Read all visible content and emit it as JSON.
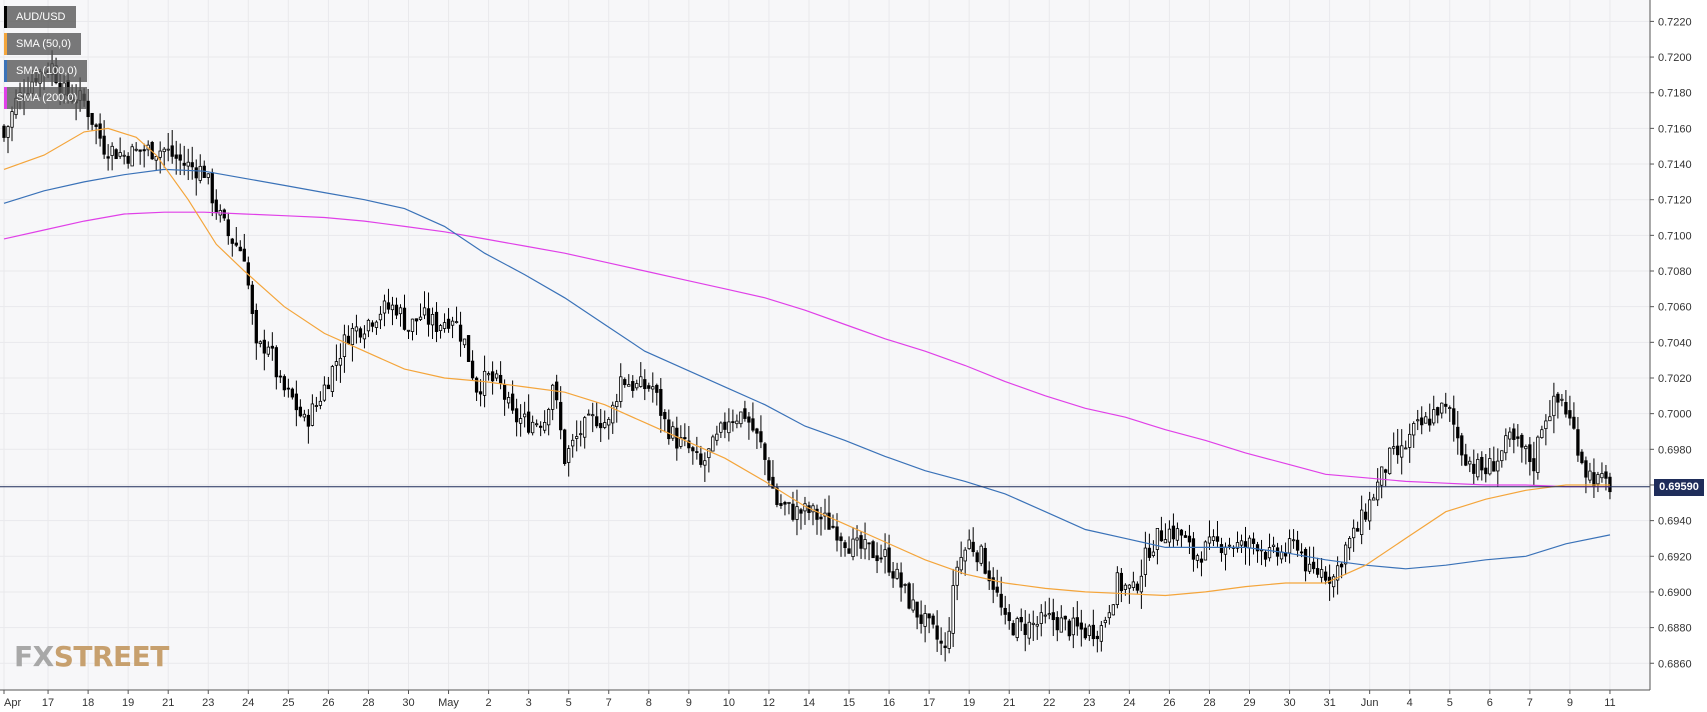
{
  "chart_data": {
    "type": "candlestick",
    "symbol": "AUD/USD",
    "ylim": [
      0.6845,
      0.7232
    ],
    "y_ticks": [
      "0.7220",
      "0.7200",
      "0.7180",
      "0.7160",
      "0.7140",
      "0.7120",
      "0.7100",
      "0.7080",
      "0.7060",
      "0.7040",
      "0.7020",
      "0.7000",
      "0.6980",
      "0.6960",
      "0.6940",
      "0.6920",
      "0.6900",
      "0.6880",
      "0.6860"
    ],
    "x_ticks": [
      {
        "label": "Apr",
        "x": 0
      },
      {
        "label": "17",
        "x": 11
      },
      {
        "label": "18",
        "x": 21
      },
      {
        "label": "19",
        "x": 31
      },
      {
        "label": "21",
        "x": 41
      },
      {
        "label": "23",
        "x": 51
      },
      {
        "label": "24",
        "x": 61
      },
      {
        "label": "25",
        "x": 71
      },
      {
        "label": "26",
        "x": 81
      },
      {
        "label": "28",
        "x": 91
      },
      {
        "label": "30",
        "x": 101
      },
      {
        "label": "May",
        "x": 111
      },
      {
        "label": "2",
        "x": 121
      },
      {
        "label": "3",
        "x": 131
      },
      {
        "label": "5",
        "x": 141
      },
      {
        "label": "7",
        "x": 151
      },
      {
        "label": "8",
        "x": 161
      },
      {
        "label": "9",
        "x": 171
      },
      {
        "label": "10",
        "x": 181
      },
      {
        "label": "12",
        "x": 191
      },
      {
        "label": "14",
        "x": 201
      },
      {
        "label": "15",
        "x": 211
      },
      {
        "label": "16",
        "x": 221
      },
      {
        "label": "17",
        "x": 231
      },
      {
        "label": "19",
        "x": 241
      },
      {
        "label": "21",
        "x": 251
      },
      {
        "label": "22",
        "x": 261
      },
      {
        "label": "23",
        "x": 271
      },
      {
        "label": "24",
        "x": 281
      },
      {
        "label": "26",
        "x": 291
      },
      {
        "label": "28",
        "x": 301
      },
      {
        "label": "29",
        "x": 311
      },
      {
        "label": "30",
        "x": 321
      },
      {
        "label": "31",
        "x": 331
      },
      {
        "label": "Jun",
        "x": 341
      },
      {
        "label": "4",
        "x": 351
      },
      {
        "label": "5",
        "x": 361
      },
      {
        "label": "6",
        "x": 371
      },
      {
        "label": "7",
        "x": 381
      },
      {
        "label": "9",
        "x": 391
      },
      {
        "label": "11",
        "x": 401
      }
    ],
    "xlim": [
      -1,
      411
    ],
    "price_anchors": [
      [
        0,
        0.7155
      ],
      [
        3,
        0.7175
      ],
      [
        8,
        0.719
      ],
      [
        12,
        0.7195
      ],
      [
        15,
        0.718
      ],
      [
        20,
        0.7175
      ],
      [
        25,
        0.715
      ],
      [
        30,
        0.7145
      ],
      [
        35,
        0.7148
      ],
      [
        40,
        0.7148
      ],
      [
        45,
        0.714
      ],
      [
        50,
        0.7136
      ],
      [
        53,
        0.7115
      ],
      [
        56,
        0.71
      ],
      [
        60,
        0.709
      ],
      [
        63,
        0.7035
      ],
      [
        66,
        0.704
      ],
      [
        69,
        0.7015
      ],
      [
        72,
        0.7008
      ],
      [
        75,
        0.6995
      ],
      [
        78,
        0.7005
      ],
      [
        82,
        0.7025
      ],
      [
        86,
        0.7045
      ],
      [
        90,
        0.705
      ],
      [
        94,
        0.7058
      ],
      [
        98,
        0.706
      ],
      [
        101,
        0.7048
      ],
      [
        104,
        0.7055
      ],
      [
        108,
        0.705
      ],
      [
        112,
        0.7055
      ],
      [
        115,
        0.704
      ],
      [
        118,
        0.7015
      ],
      [
        121,
        0.702
      ],
      [
        124,
        0.7015
      ],
      [
        127,
        0.6998
      ],
      [
        131,
        0.6995
      ],
      [
        135,
        0.6997
      ],
      [
        137,
        0.7018
      ],
      [
        140,
        0.6975
      ],
      [
        144,
        0.699
      ],
      [
        148,
        0.6998
      ],
      [
        151,
        0.6994
      ],
      [
        154,
        0.702
      ],
      [
        158,
        0.7015
      ],
      [
        162,
        0.7015
      ],
      [
        165,
        0.6995
      ],
      [
        168,
        0.6985
      ],
      [
        171,
        0.698
      ],
      [
        174,
        0.697
      ],
      [
        178,
        0.6985
      ],
      [
        181,
        0.6998
      ],
      [
        185,
        0.7
      ],
      [
        189,
        0.6982
      ],
      [
        193,
        0.695
      ],
      [
        197,
        0.6945
      ],
      [
        201,
        0.6945
      ],
      [
        205,
        0.694
      ],
      [
        208,
        0.6935
      ],
      [
        212,
        0.6925
      ],
      [
        216,
        0.6923
      ],
      [
        220,
        0.692
      ],
      [
        223,
        0.6908
      ],
      [
        226,
        0.6895
      ],
      [
        229,
        0.6885
      ],
      [
        232,
        0.6877
      ],
      [
        235,
        0.6866
      ],
      [
        238,
        0.6915
      ],
      [
        241,
        0.6928
      ],
      [
        244,
        0.692
      ],
      [
        247,
        0.6905
      ],
      [
        250,
        0.6882
      ],
      [
        254,
        0.688
      ],
      [
        258,
        0.6882
      ],
      [
        262,
        0.6885
      ],
      [
        266,
        0.688
      ],
      [
        270,
        0.6878
      ],
      [
        274,
        0.688
      ],
      [
        278,
        0.6905
      ],
      [
        282,
        0.69
      ],
      [
        286,
        0.6925
      ],
      [
        290,
        0.6935
      ],
      [
        294,
        0.6932
      ],
      [
        297,
        0.692
      ],
      [
        301,
        0.6925
      ],
      [
        305,
        0.6928
      ],
      [
        309,
        0.6925
      ],
      [
        313,
        0.6928
      ],
      [
        316,
        0.692
      ],
      [
        320,
        0.6922
      ],
      [
        323,
        0.6928
      ],
      [
        326,
        0.691
      ],
      [
        329,
        0.6912
      ],
      [
        332,
        0.6908
      ],
      [
        335,
        0.6925
      ],
      [
        338,
        0.6935
      ],
      [
        341,
        0.695
      ],
      [
        343,
        0.696
      ],
      [
        346,
        0.6975
      ],
      [
        349,
        0.6978
      ],
      [
        352,
        0.699
      ],
      [
        355,
        0.6995
      ],
      [
        358,
        0.7003
      ],
      [
        361,
        0.7
      ],
      [
        364,
        0.698
      ],
      [
        367,
        0.697
      ],
      [
        370,
        0.6968
      ],
      [
        373,
        0.6975
      ],
      [
        376,
        0.6985
      ],
      [
        379,
        0.698
      ],
      [
        382,
        0.6972
      ],
      [
        384,
        0.6995
      ],
      [
        386,
        0.7003
      ],
      [
        389,
        0.7008
      ],
      [
        392,
        0.699
      ],
      [
        395,
        0.6968
      ],
      [
        398,
        0.6962
      ],
      [
        401,
        0.696
      ]
    ],
    "sma_50": [
      [
        0,
        0.7137
      ],
      [
        10,
        0.7145
      ],
      [
        20,
        0.7158
      ],
      [
        26,
        0.716
      ],
      [
        33,
        0.7155
      ],
      [
        38,
        0.7145
      ],
      [
        46,
        0.712
      ],
      [
        53,
        0.7095
      ],
      [
        60,
        0.708
      ],
      [
        70,
        0.706
      ],
      [
        80,
        0.7045
      ],
      [
        90,
        0.7035
      ],
      [
        100,
        0.7025
      ],
      [
        110,
        0.702
      ],
      [
        120,
        0.7018
      ],
      [
        130,
        0.7015
      ],
      [
        140,
        0.7012
      ],
      [
        150,
        0.7005
      ],
      [
        160,
        0.6995
      ],
      [
        170,
        0.6985
      ],
      [
        180,
        0.6975
      ],
      [
        190,
        0.6962
      ],
      [
        200,
        0.6948
      ],
      [
        210,
        0.6938
      ],
      [
        220,
        0.6928
      ],
      [
        230,
        0.6918
      ],
      [
        240,
        0.691
      ],
      [
        250,
        0.6905
      ],
      [
        260,
        0.6902
      ],
      [
        270,
        0.69
      ],
      [
        280,
        0.6899
      ],
      [
        290,
        0.6898
      ],
      [
        300,
        0.69
      ],
      [
        310,
        0.6903
      ],
      [
        320,
        0.6905
      ],
      [
        330,
        0.6905
      ],
      [
        340,
        0.6915
      ],
      [
        350,
        0.693
      ],
      [
        360,
        0.6945
      ],
      [
        370,
        0.6952
      ],
      [
        380,
        0.6957
      ],
      [
        390,
        0.696
      ],
      [
        401,
        0.696
      ]
    ],
    "sma_100": [
      [
        0,
        0.7118
      ],
      [
        10,
        0.7125
      ],
      [
        20,
        0.713
      ],
      [
        30,
        0.7134
      ],
      [
        40,
        0.7137
      ],
      [
        50,
        0.7136
      ],
      [
        60,
        0.7132
      ],
      [
        70,
        0.7128
      ],
      [
        80,
        0.7124
      ],
      [
        90,
        0.712
      ],
      [
        100,
        0.7115
      ],
      [
        110,
        0.7105
      ],
      [
        120,
        0.709
      ],
      [
        130,
        0.7078
      ],
      [
        140,
        0.7065
      ],
      [
        150,
        0.705
      ],
      [
        160,
        0.7035
      ],
      [
        170,
        0.7025
      ],
      [
        180,
        0.7015
      ],
      [
        190,
        0.7005
      ],
      [
        200,
        0.6993
      ],
      [
        210,
        0.6985
      ],
      [
        220,
        0.6976
      ],
      [
        230,
        0.6968
      ],
      [
        240,
        0.6962
      ],
      [
        250,
        0.6955
      ],
      [
        260,
        0.6945
      ],
      [
        270,
        0.6935
      ],
      [
        280,
        0.693
      ],
      [
        290,
        0.6925
      ],
      [
        300,
        0.6925
      ],
      [
        310,
        0.6925
      ],
      [
        320,
        0.6922
      ],
      [
        330,
        0.6918
      ],
      [
        340,
        0.6915
      ],
      [
        350,
        0.6913
      ],
      [
        360,
        0.6915
      ],
      [
        370,
        0.6918
      ],
      [
        380,
        0.692
      ],
      [
        390,
        0.6927
      ],
      [
        401,
        0.6932
      ]
    ],
    "sma_200": [
      [
        0,
        0.7098
      ],
      [
        10,
        0.7103
      ],
      [
        20,
        0.7108
      ],
      [
        30,
        0.7112
      ],
      [
        40,
        0.7113
      ],
      [
        50,
        0.7113
      ],
      [
        60,
        0.7112
      ],
      [
        70,
        0.7111
      ],
      [
        80,
        0.711
      ],
      [
        90,
        0.7108
      ],
      [
        100,
        0.7105
      ],
      [
        110,
        0.7102
      ],
      [
        120,
        0.7098
      ],
      [
        130,
        0.7094
      ],
      [
        140,
        0.709
      ],
      [
        150,
        0.7085
      ],
      [
        160,
        0.708
      ],
      [
        170,
        0.7075
      ],
      [
        180,
        0.707
      ],
      [
        190,
        0.7065
      ],
      [
        200,
        0.7058
      ],
      [
        210,
        0.705
      ],
      [
        220,
        0.7042
      ],
      [
        230,
        0.7035
      ],
      [
        240,
        0.7027
      ],
      [
        250,
        0.7018
      ],
      [
        260,
        0.701
      ],
      [
        270,
        0.7003
      ],
      [
        280,
        0.6998
      ],
      [
        290,
        0.6991
      ],
      [
        300,
        0.6985
      ],
      [
        310,
        0.6978
      ],
      [
        320,
        0.6972
      ],
      [
        330,
        0.6966
      ],
      [
        340,
        0.6964
      ],
      [
        350,
        0.6962
      ],
      [
        360,
        0.6961
      ],
      [
        370,
        0.696
      ],
      [
        380,
        0.696
      ],
      [
        390,
        0.6959
      ],
      [
        401,
        0.6959
      ]
    ],
    "current_price": 0.6959,
    "current_price_label": "0.69590",
    "grid": true,
    "colors": {
      "up": "#ffffff",
      "down": "#000000",
      "wick": "#000000",
      "sma_50": "#f4a53b",
      "sma_100": "#3a72b8",
      "sma_200": "#e040e8",
      "price_line": "#1f2d5a",
      "grid": "#e9e9ec",
      "axis_text": "#333333"
    }
  },
  "legend": [
    {
      "label": "AUD/USD",
      "color": "#000000"
    },
    {
      "label": "SMA (50,0)",
      "color": "#f4a53b"
    },
    {
      "label": "SMA (100,0)",
      "color": "#3a72b8"
    },
    {
      "label": "SMA (200,0)",
      "color": "#e040e8"
    }
  ],
  "logo": {
    "fx": "FX",
    "street": "STREET"
  }
}
